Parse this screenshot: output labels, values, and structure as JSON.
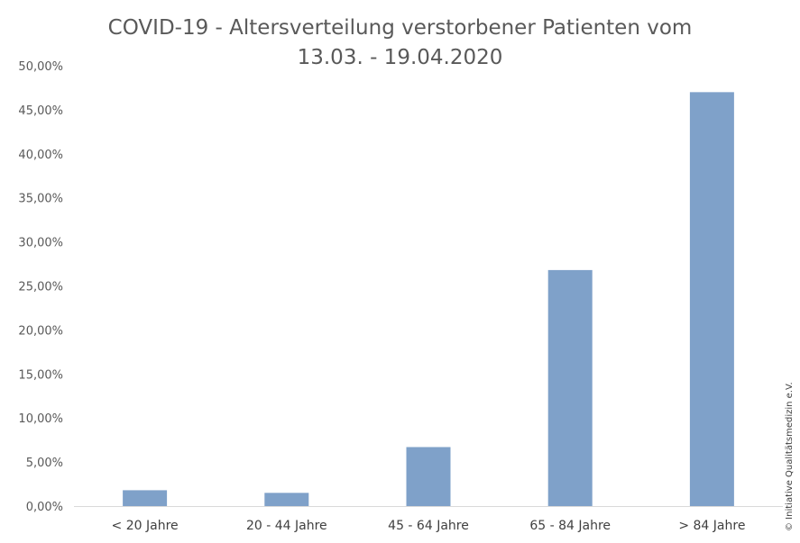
{
  "chart_data": {
    "type": "bar",
    "title_lines": [
      "COVID-19 - Altersverteilung verstorbener Patienten vom",
      "13.03. - 19.04.2020"
    ],
    "categories": [
      "< 20 Jahre",
      "20 - 44 Jahre",
      "45 - 64 Jahre",
      "65 - 84 Jahre",
      "> 84 Jahre"
    ],
    "values": [
      1.8,
      1.5,
      6.7,
      26.8,
      47.0
    ],
    "value_unit": "%",
    "xlabel": "",
    "ylabel": "",
    "ylim": [
      0,
      50
    ],
    "ytick_values": [
      0,
      5,
      10,
      15,
      20,
      25,
      30,
      35,
      40,
      45,
      50
    ],
    "ytick_labels": [
      "0,00%",
      "5,00%",
      "10,00%",
      "15,00%",
      "20,00%",
      "25,00%",
      "30,00%",
      "35,00%",
      "40,00%",
      "45,00%",
      "50,00%"
    ],
    "grid": false,
    "legend": "none",
    "bar_color": "#7fa1c9",
    "axis_color": "#d9d9d9"
  },
  "copyright": "© Initiative Qualitätsmedizin e.V."
}
